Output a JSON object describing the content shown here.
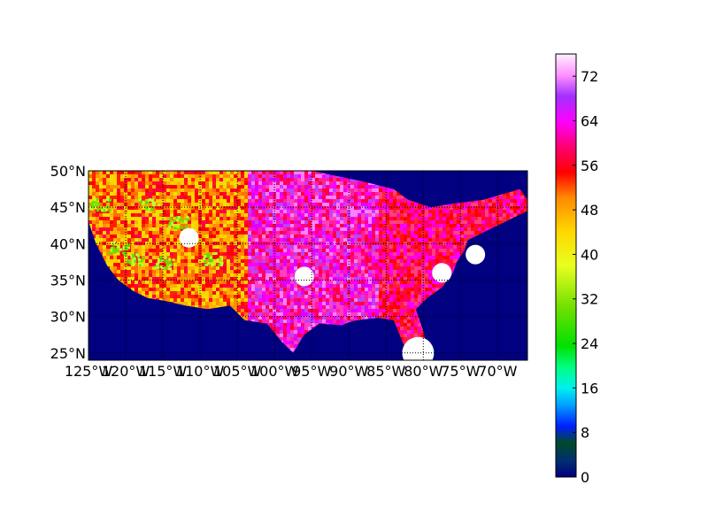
{
  "map": {
    "projection": "cylindrical",
    "lon_range": [
      -125,
      -66
    ],
    "lat_range": [
      24,
      50
    ],
    "ocean_color": "#000080",
    "graticule_style": "dotted",
    "lat_labels": [
      {
        "value": 25,
        "label": "25°N"
      },
      {
        "value": 30,
        "label": "30°N"
      },
      {
        "value": 35,
        "label": "35°N"
      },
      {
        "value": 40,
        "label": "40°N"
      },
      {
        "value": 45,
        "label": "45°N"
      },
      {
        "value": 50,
        "label": "50°N"
      }
    ],
    "lon_labels": [
      {
        "value": -125,
        "label": "125°W"
      },
      {
        "value": -120,
        "label": "120°W"
      },
      {
        "value": -115,
        "label": "115°W"
      },
      {
        "value": -110,
        "label": "110°W"
      },
      {
        "value": -105,
        "label": "105°W"
      },
      {
        "value": -100,
        "label": "100°W"
      },
      {
        "value": -95,
        "label": "95°W"
      },
      {
        "value": -90,
        "label": "90°W"
      },
      {
        "value": -85,
        "label": "85°W"
      },
      {
        "value": -80,
        "label": "80°W"
      },
      {
        "value": -75,
        "label": "75°W"
      },
      {
        "value": -70,
        "label": "70°W"
      }
    ],
    "data_region": "contiguous United States (radar-coverage mosaic)",
    "dominant_values": {
      "west": "about 40–56 (orange/yellow/red) with 24–36 (green) gaps",
      "central": "about 56–68 (magenta/pink)",
      "east": "about 52–60 (red/magenta)"
    },
    "missing_spots_lonlat": [
      [
        -111.5,
        40.8
      ],
      [
        -96.0,
        35.5
      ],
      [
        -77.5,
        36.0
      ],
      [
        -73.0,
        38.5
      ],
      [
        -80.7,
        25.0
      ]
    ]
  },
  "colorbar": {
    "colormap": "gist_ncar",
    "min": 0,
    "max": 76,
    "ticks": [
      "0",
      "8",
      "16",
      "24",
      "32",
      "40",
      "48",
      "56",
      "64",
      "72"
    ],
    "tick_values": [
      0,
      8,
      16,
      24,
      32,
      40,
      48,
      56,
      64,
      72
    ]
  }
}
